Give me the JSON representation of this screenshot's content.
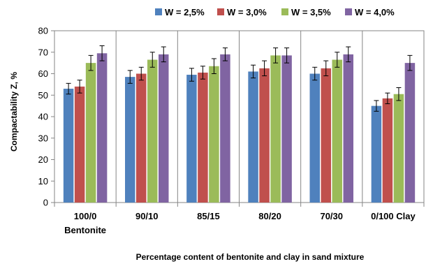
{
  "chart_data": {
    "type": "bar",
    "title": "",
    "xlabel": "Percentage content of bentonite and clay in sand mixture",
    "ylabel": "Compactability  Z, %",
    "ylim": [
      0,
      80
    ],
    "yticks": [
      0,
      10,
      20,
      30,
      40,
      50,
      60,
      70,
      80
    ],
    "categories": [
      [
        "100/0",
        "Bentonite"
      ],
      [
        "90/10"
      ],
      [
        "85/15"
      ],
      [
        "80/20"
      ],
      [
        "70/30"
      ],
      [
        "0/100 Clay"
      ]
    ],
    "grid": "vertical category separators",
    "legend_position": "top",
    "series": [
      {
        "name": "W = 2,5%",
        "color": "#4F81BD",
        "values": [
          53,
          58.5,
          59.5,
          61,
          60,
          45
        ],
        "errors": [
          2.5,
          3,
          3,
          3,
          3,
          2.5
        ]
      },
      {
        "name": "W = 3,0%",
        "color": "#C0504D",
        "values": [
          54,
          60,
          60.5,
          62.5,
          62.5,
          48.5
        ],
        "errors": [
          3,
          3,
          3,
          3.5,
          3.5,
          2.5
        ]
      },
      {
        "name": "W = 3,5%",
        "color": "#9BBB59",
        "values": [
          65,
          66.5,
          63.5,
          68.5,
          66.5,
          50.5
        ],
        "errors": [
          3.5,
          3.5,
          3.5,
          3.5,
          3.5,
          3
        ]
      },
      {
        "name": "W = 4,0%",
        "color": "#8064A2",
        "values": [
          69.5,
          69,
          69,
          68.5,
          69,
          65
        ],
        "errors": [
          3.5,
          3.5,
          3,
          3.5,
          3.5,
          3.5
        ]
      }
    ]
  }
}
